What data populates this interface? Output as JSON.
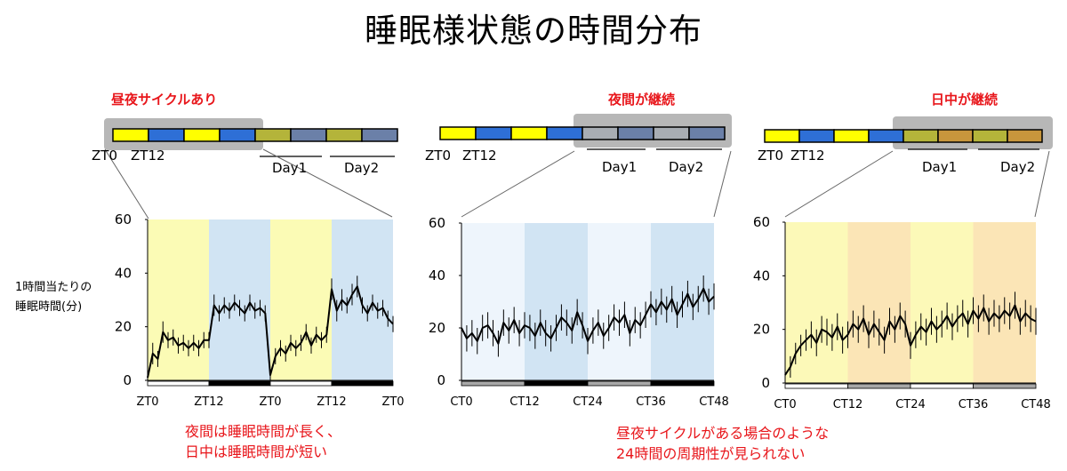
{
  "title": "睡眠様状態の時間分布",
  "y_axis_label": [
    "1時間当たりの",
    "睡眠時間(分)"
  ],
  "colors": {
    "yellow": "#ffff00",
    "blue": "#2e6fd6",
    "olive": "#b4b43a",
    "slate": "#6b80a8",
    "gray": "#a8adb3",
    "tan": "#c8963c",
    "shade": "#b7b7b7",
    "red": "#e8161b"
  },
  "schedules": [
    {
      "label": "昼夜サイクルあり",
      "start_labels": [
        "ZT0",
        "ZT12"
      ],
      "day_labels": [
        "Day1",
        "Day2"
      ],
      "segments": [
        "yellow",
        "blue",
        "yellow",
        "blue",
        "olive",
        "slate",
        "olive",
        "slate"
      ]
    },
    {
      "label": "夜間が継続",
      "start_labels": [
        "ZT0",
        "ZT12"
      ],
      "day_labels": [
        "Day1",
        "Day2"
      ],
      "segments": [
        "yellow",
        "blue",
        "yellow",
        "blue",
        "gray",
        "slate",
        "gray",
        "slate"
      ]
    },
    {
      "label": "日中が継続",
      "start_labels": [
        "ZT0",
        "ZT12"
      ],
      "day_labels": [
        "Day1",
        "Day2"
      ],
      "segments": [
        "yellow",
        "blue",
        "yellow",
        "blue",
        "olive",
        "tan",
        "olive",
        "tan"
      ]
    }
  ],
  "notes": {
    "left": [
      "夜間は睡眠時間が長く、",
      "日中は睡眠時間が短い"
    ],
    "right": [
      "昼夜サイクルがある場合のような",
      "24時間の周期性が見られない"
    ]
  },
  "chart_data": [
    {
      "type": "line",
      "title": "",
      "xlabel": "",
      "ylabel": "1時間当たりの睡眠時間(分)",
      "ylim": [
        0,
        60
      ],
      "yticks": [
        "0",
        "20",
        "40",
        "60"
      ],
      "xlim": [
        0,
        48
      ],
      "xtick_positions": [
        0,
        12,
        24,
        36,
        48
      ],
      "xtick_labels": [
        "ZT0",
        "ZT12",
        "ZT0",
        "ZT12",
        "ZT0"
      ],
      "background_bands": [
        "#fbfbb5",
        "#d1e4f3",
        "#fbfbb5",
        "#d1e4f3"
      ],
      "light_bar": [
        "#ffffff",
        "#000000",
        "#ffffff",
        "#000000"
      ],
      "series": [
        {
          "x": [
            0,
            1,
            2,
            3,
            4,
            5,
            6,
            7,
            8,
            9,
            10,
            11,
            12,
            13,
            14,
            15,
            16,
            17,
            18,
            19,
            20,
            21,
            22,
            23,
            24,
            25,
            26,
            27,
            28,
            29,
            30,
            31,
            32,
            33,
            34,
            35,
            36,
            37,
            38,
            39,
            40,
            41,
            42,
            43,
            44,
            45,
            46,
            47,
            48
          ],
          "values": [
            1,
            10,
            8,
            18,
            15,
            16,
            13,
            14,
            12,
            14,
            12,
            15,
            15,
            28,
            25,
            28,
            26,
            29,
            27,
            25,
            29,
            26,
            27,
            25,
            2,
            9,
            12,
            10,
            14,
            12,
            14,
            18,
            13,
            17,
            15,
            17,
            34,
            26,
            30,
            28,
            32,
            35,
            28,
            25,
            29,
            26,
            27,
            23,
            21
          ],
          "errors": [
            2,
            4,
            3,
            4,
            3,
            3,
            3,
            3,
            3,
            3,
            3,
            3,
            3,
            4,
            3,
            3,
            3,
            3,
            3,
            3,
            3,
            3,
            3,
            3,
            2,
            3,
            3,
            3,
            3,
            3,
            3,
            3,
            3,
            3,
            3,
            3,
            4,
            4,
            4,
            3,
            4,
            4,
            3,
            3,
            3,
            3,
            3,
            3,
            3
          ]
        }
      ]
    },
    {
      "type": "line",
      "title": "",
      "xlabel": "",
      "ylabel": "",
      "ylim": [
        0,
        60
      ],
      "yticks": [
        "0",
        "20",
        "40",
        "60"
      ],
      "xlim": [
        0,
        48
      ],
      "xtick_positions": [
        0,
        12,
        24,
        36,
        48
      ],
      "xtick_labels": [
        "CT0",
        "CT12",
        "CT24",
        "CT36",
        "CT48"
      ],
      "background_bands": [
        "#eef5fc",
        "#d1e4f3",
        "#eef5fc",
        "#d1e4f3"
      ],
      "light_bar": [
        "#a8a8a8",
        "#000000",
        "#a8a8a8",
        "#000000"
      ],
      "series": [
        {
          "x": [
            0,
            1,
            2,
            3,
            4,
            5,
            6,
            7,
            8,
            9,
            10,
            11,
            12,
            13,
            14,
            15,
            16,
            17,
            18,
            19,
            20,
            21,
            22,
            23,
            24,
            25,
            26,
            27,
            28,
            29,
            30,
            31,
            32,
            33,
            34,
            35,
            36,
            37,
            38,
            39,
            40,
            41,
            42,
            43,
            44,
            45,
            46,
            47,
            48
          ],
          "values": [
            20,
            16,
            18,
            15,
            20,
            21,
            18,
            14,
            22,
            19,
            23,
            18,
            21,
            20,
            17,
            22,
            18,
            16,
            20,
            24,
            22,
            19,
            26,
            21,
            15,
            19,
            22,
            17,
            20,
            24,
            22,
            25,
            18,
            23,
            21,
            25,
            29,
            26,
            30,
            27,
            31,
            25,
            29,
            33,
            28,
            31,
            35,
            30,
            32
          ],
          "errors": [
            5,
            5,
            5,
            5,
            5,
            5,
            5,
            5,
            5,
            5,
            5,
            5,
            5,
            5,
            5,
            5,
            5,
            5,
            5,
            5,
            5,
            5,
            5,
            5,
            5,
            5,
            5,
            5,
            5,
            5,
            5,
            5,
            5,
            5,
            5,
            5,
            5,
            5,
            5,
            5,
            5,
            5,
            5,
            5,
            5,
            5,
            5,
            5,
            5
          ]
        }
      ]
    },
    {
      "type": "line",
      "title": "",
      "xlabel": "",
      "ylabel": "",
      "ylim": [
        0,
        60
      ],
      "yticks": [
        "0",
        "20",
        "40",
        "60"
      ],
      "xlim": [
        0,
        48
      ],
      "xtick_positions": [
        0,
        12,
        24,
        36,
        48
      ],
      "xtick_labels": [
        "CT0",
        "CT12",
        "CT24",
        "CT36",
        "CT48"
      ],
      "background_bands": [
        "#fcf9b8",
        "#fbe5b6",
        "#fcf9b8",
        "#fbe5b6"
      ],
      "light_bar": [
        "#ffffff",
        "#a8a8a8",
        "#ffffff",
        "#a8a8a8"
      ],
      "series": [
        {
          "x": [
            0,
            1,
            2,
            3,
            4,
            5,
            6,
            7,
            8,
            9,
            10,
            11,
            12,
            13,
            14,
            15,
            16,
            17,
            18,
            19,
            20,
            21,
            22,
            23,
            24,
            25,
            26,
            27,
            28,
            29,
            30,
            31,
            32,
            33,
            34,
            35,
            36,
            37,
            38,
            39,
            40,
            41,
            42,
            43,
            44,
            45,
            46,
            47,
            48
          ],
          "values": [
            3,
            6,
            11,
            14,
            16,
            18,
            15,
            20,
            19,
            17,
            21,
            16,
            18,
            22,
            20,
            24,
            18,
            22,
            19,
            16,
            23,
            20,
            25,
            22,
            14,
            18,
            21,
            19,
            23,
            20,
            22,
            25,
            21,
            24,
            26,
            22,
            27,
            24,
            28,
            23,
            26,
            24,
            27,
            25,
            29,
            23,
            26,
            24,
            23
          ],
          "errors": [
            4,
            4,
            4,
            4,
            4,
            5,
            5,
            5,
            5,
            5,
            5,
            5,
            5,
            5,
            5,
            5,
            5,
            5,
            5,
            5,
            5,
            5,
            5,
            5,
            5,
            5,
            5,
            5,
            5,
            5,
            5,
            5,
            5,
            5,
            5,
            5,
            5,
            5,
            5,
            5,
            5,
            5,
            5,
            5,
            5,
            5,
            5,
            5,
            5
          ]
        }
      ]
    }
  ]
}
